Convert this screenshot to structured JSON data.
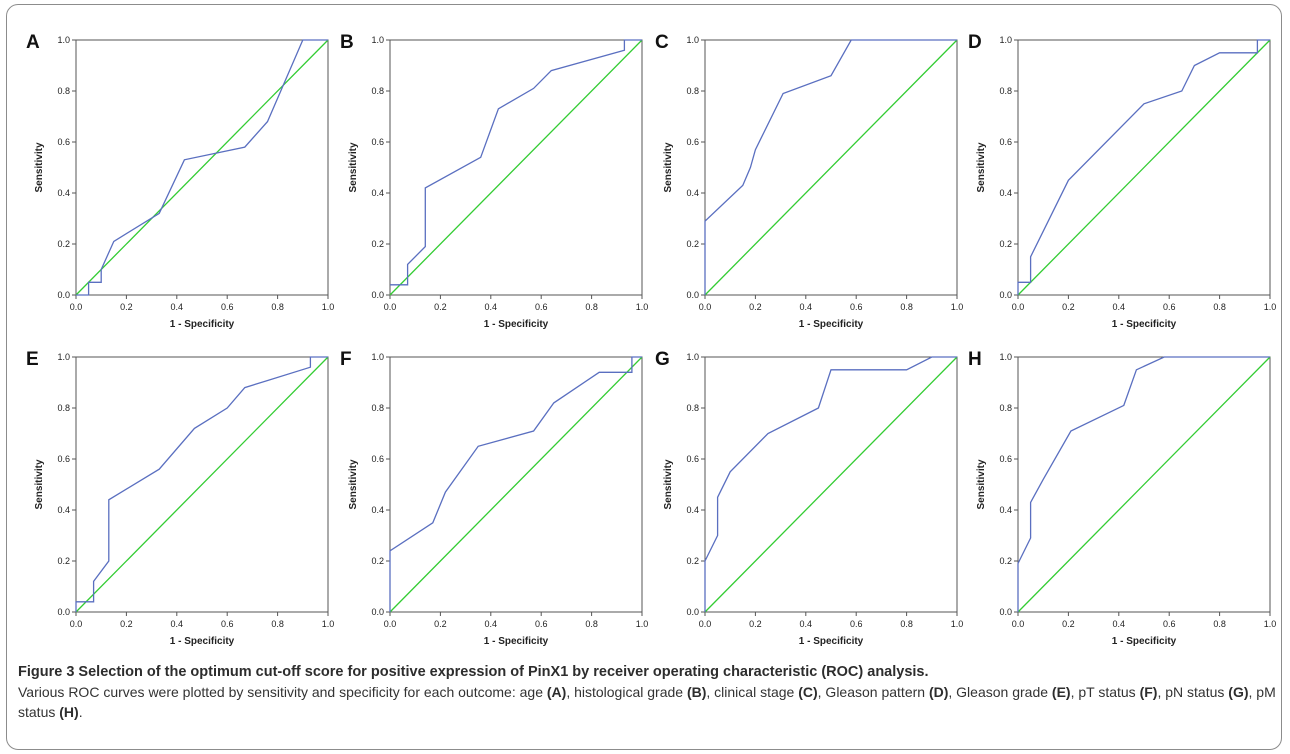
{
  "chart_data": [
    {
      "type": "line",
      "panel": "A",
      "xlabel": "1 - Specificity",
      "ylabel": "Sensitivity",
      "xlim": [
        0,
        1
      ],
      "ylim": [
        0,
        1
      ],
      "ticks": [
        "0.0",
        "0.2",
        "0.4",
        "0.6",
        "0.8",
        "1.0"
      ],
      "reference_color": "#33cc33",
      "curve_color": "#5a6fc0",
      "x": [
        0,
        0.05,
        0.05,
        0.1,
        0.1,
        0.15,
        0.33,
        0.43,
        0.67,
        0.76,
        0.9,
        1.0
      ],
      "y": [
        0,
        0,
        0.05,
        0.05,
        0.1,
        0.21,
        0.32,
        0.53,
        0.58,
        0.68,
        1.0,
        1.0
      ]
    },
    {
      "type": "line",
      "panel": "B",
      "xlabel": "1 - Specificity",
      "ylabel": "Sensitivity",
      "xlim": [
        0,
        1
      ],
      "ylim": [
        0,
        1
      ],
      "ticks": [
        "0.0",
        "0.2",
        "0.4",
        "0.6",
        "0.8",
        "1.0"
      ],
      "reference_color": "#33cc33",
      "curve_color": "#5a6fc0",
      "x": [
        0,
        0.07,
        0.07,
        0.14,
        0.14,
        0.36,
        0.43,
        0.57,
        0.64,
        0.93,
        0.93,
        1.0
      ],
      "y": [
        0.04,
        0.04,
        0.12,
        0.19,
        0.42,
        0.54,
        0.73,
        0.81,
        0.88,
        0.96,
        1.0,
        1.0
      ]
    },
    {
      "type": "line",
      "panel": "C",
      "xlabel": "1 - Specificity",
      "ylabel": "Sensitivity",
      "xlim": [
        0,
        1
      ],
      "ylim": [
        0,
        1
      ],
      "ticks": [
        "0.0",
        "0.2",
        "0.4",
        "0.6",
        "0.8",
        "1.0"
      ],
      "reference_color": "#33cc33",
      "curve_color": "#5a6fc0",
      "x": [
        0,
        0,
        0.15,
        0.18,
        0.2,
        0.31,
        0.5,
        0.58,
        1.0
      ],
      "y": [
        0,
        0.29,
        0.43,
        0.5,
        0.57,
        0.79,
        0.86,
        1.0,
        1.0
      ]
    },
    {
      "type": "line",
      "panel": "D",
      "xlabel": "1 - Specificity",
      "ylabel": "Sensitivity",
      "xlim": [
        0,
        1
      ],
      "ylim": [
        0,
        1
      ],
      "ticks": [
        "0.0",
        "0.2",
        "0.4",
        "0.6",
        "0.8",
        "1.0"
      ],
      "reference_color": "#33cc33",
      "curve_color": "#5a6fc0",
      "x": [
        0,
        0,
        0.05,
        0.05,
        0.2,
        0.5,
        0.65,
        0.7,
        0.8,
        0.95,
        0.95,
        1.0
      ],
      "y": [
        0,
        0.05,
        0.05,
        0.15,
        0.45,
        0.75,
        0.8,
        0.9,
        0.95,
        0.95,
        1.0,
        1.0
      ]
    },
    {
      "type": "line",
      "panel": "E",
      "xlabel": "1 - Specificity",
      "ylabel": "Sensitivity",
      "xlim": [
        0,
        1
      ],
      "ylim": [
        0,
        1
      ],
      "ticks": [
        "0.0",
        "0.2",
        "0.4",
        "0.6",
        "0.8",
        "1.0"
      ],
      "reference_color": "#33cc33",
      "curve_color": "#5a6fc0",
      "x": [
        0,
        0,
        0.07,
        0.07,
        0.13,
        0.13,
        0.33,
        0.47,
        0.6,
        0.67,
        0.93,
        0.93,
        1.0
      ],
      "y": [
        0,
        0.04,
        0.04,
        0.12,
        0.2,
        0.44,
        0.56,
        0.72,
        0.8,
        0.88,
        0.96,
        1.0,
        1.0
      ]
    },
    {
      "type": "line",
      "panel": "F",
      "xlabel": "1 - Specificity",
      "ylabel": "Sensitivity",
      "xlim": [
        0,
        1
      ],
      "ylim": [
        0,
        1
      ],
      "ticks": [
        "0.0",
        "0.2",
        "0.4",
        "0.6",
        "0.8",
        "1.0"
      ],
      "reference_color": "#33cc33",
      "curve_color": "#5a6fc0",
      "x": [
        0,
        0,
        0.17,
        0.22,
        0.35,
        0.57,
        0.65,
        0.83,
        0.96,
        0.96,
        1.0
      ],
      "y": [
        0,
        0.24,
        0.35,
        0.47,
        0.65,
        0.71,
        0.82,
        0.94,
        0.94,
        1.0,
        1.0
      ]
    },
    {
      "type": "line",
      "panel": "G",
      "xlabel": "1 - Specificity",
      "ylabel": "Sensitivity",
      "xlim": [
        0,
        1
      ],
      "ylim": [
        0,
        1
      ],
      "ticks": [
        "0.0",
        "0.2",
        "0.4",
        "0.6",
        "0.8",
        "1.0"
      ],
      "reference_color": "#33cc33",
      "curve_color": "#5a6fc0",
      "x": [
        0,
        0,
        0.05,
        0.05,
        0.1,
        0.25,
        0.45,
        0.5,
        0.8,
        0.9,
        1.0
      ],
      "y": [
        0,
        0.2,
        0.3,
        0.45,
        0.55,
        0.7,
        0.8,
        0.95,
        0.95,
        1.0,
        1.0
      ]
    },
    {
      "type": "line",
      "panel": "H",
      "xlabel": "1 - Specificity",
      "ylabel": "Sensitivity",
      "xlim": [
        0,
        1
      ],
      "ylim": [
        0,
        1
      ],
      "ticks": [
        "0.0",
        "0.2",
        "0.4",
        "0.6",
        "0.8",
        "1.0"
      ],
      "reference_color": "#33cc33",
      "curve_color": "#5a6fc0",
      "x": [
        0,
        0,
        0.05,
        0.05,
        0.1,
        0.21,
        0.42,
        0.47,
        0.58,
        1.0
      ],
      "y": [
        0,
        0.19,
        0.29,
        0.43,
        0.52,
        0.71,
        0.81,
        0.95,
        1.0,
        1.0
      ]
    }
  ],
  "caption": {
    "title": "Figure 3 Selection of the optimum cut-off score for positive expression of PinX1 by receiver operating characteristic (ROC) analysis.",
    "lead": "Various ROC curves were plotted by sensitivity and specificity for each outcome: age ",
    "items": [
      {
        "text": "age ",
        "ref": "(A)"
      },
      {
        "text": ", histological grade ",
        "ref": "(B)"
      },
      {
        "text": ", clinical stage ",
        "ref": "(C)"
      },
      {
        "text": ", Gleason pattern ",
        "ref": "(D)"
      },
      {
        "text": ", Gleason grade ",
        "ref": "(E)"
      },
      {
        "text": ", pT status ",
        "ref": "(F)"
      },
      {
        "text": ", pN status ",
        "ref": "(G)"
      },
      {
        "text": ", pM status ",
        "ref": "(H)"
      }
    ],
    "end": "."
  }
}
